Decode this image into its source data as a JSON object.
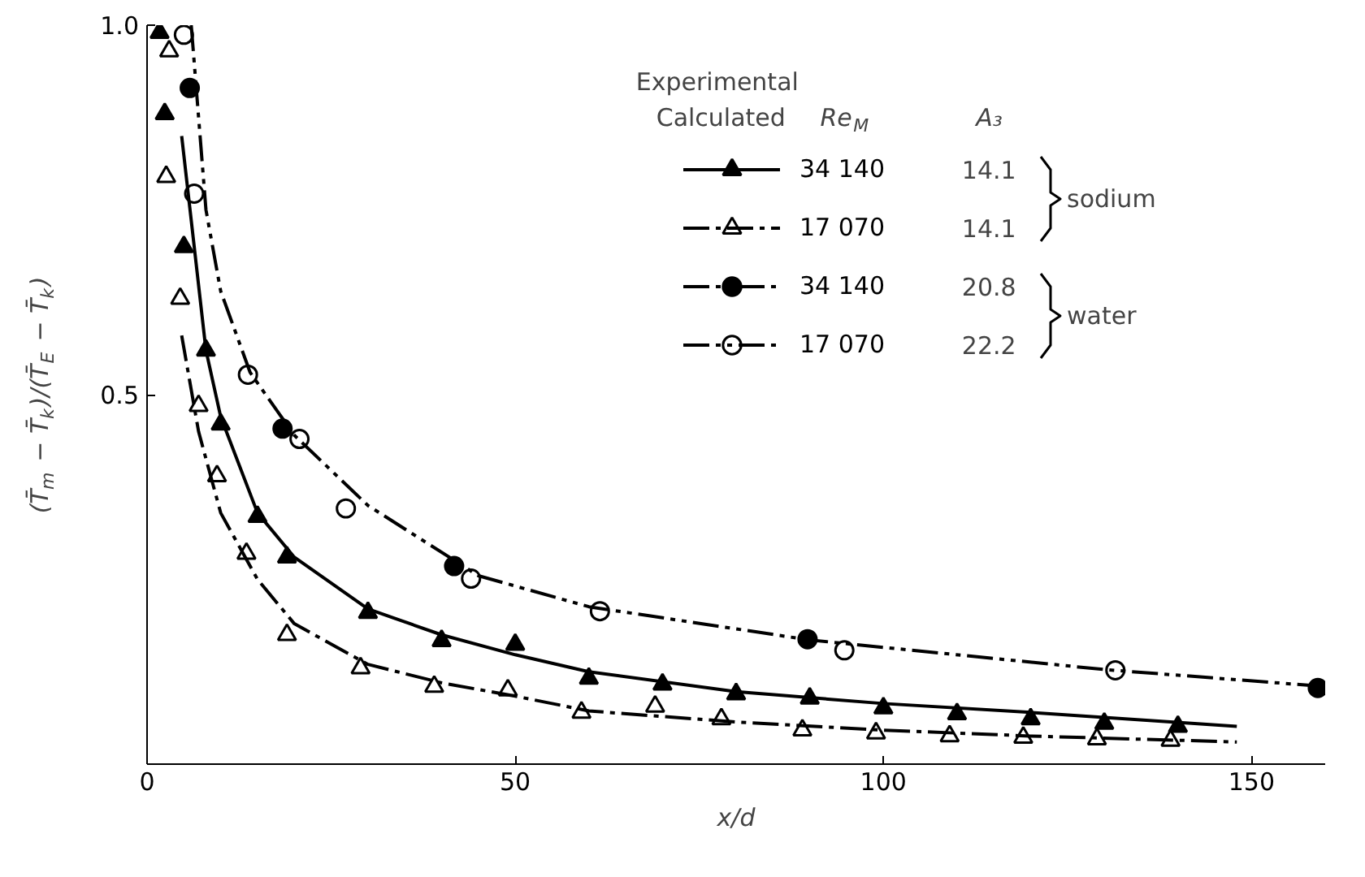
{
  "chart_data": {
    "type": "scatter",
    "xlabel": "x/d",
    "ylabel": "(T̄$_{m}$ − T̄$_{k}$)/(T̄$_{E}$ − T̄$_{k}$)",
    "xlim": [
      0,
      160
    ],
    "ylim": [
      0,
      1.0
    ],
    "xticks": [
      0,
      50,
      100,
      150
    ],
    "yticks": [
      {
        "value": 0.5,
        "label": "0.5"
      },
      {
        "value": 1.0,
        "label": "1.0"
      }
    ],
    "grid": false,
    "legend": "top right",
    "annotations": [
      "Re$_{M}$",
      "Experimental",
      "Calculated",
      "A₃",
      "14.1",
      "14.1",
      "20.8",
      "22.2",
      "sodium",
      "water"
    ],
    "series": [
      {
        "name": "34 140",
        "marker": "triangle",
        "color": "#000000",
        "x": [
          1.7,
          2.4,
          5,
          8,
          10,
          15,
          19,
          30,
          40,
          50,
          60,
          70,
          80,
          90,
          100,
          110,
          120,
          130,
          140
        ],
        "values": [
          0.99,
          0.88,
          0.7,
          0.56,
          0.46,
          0.335,
          0.28,
          0.205,
          0.167,
          0.162,
          0.116,
          0.108,
          0.095,
          0.089,
          0.076,
          0.068,
          0.061,
          0.055,
          0.051
        ]
      },
      {
        "name": "17 070",
        "marker": "triangle",
        "color": "#ffffff",
        "x": [
          3,
          2.6,
          4.5,
          7,
          9.5,
          13.5,
          19,
          29,
          39,
          49,
          59,
          69,
          78,
          89,
          99,
          109,
          119,
          129,
          139
        ],
        "values": [
          0.965,
          0.795,
          0.63,
          0.485,
          0.39,
          0.285,
          0.175,
          0.13,
          0.105,
          0.1,
          0.07,
          0.078,
          0.061,
          0.046,
          0.042,
          0.038,
          0.036,
          0.034,
          0.032
        ]
      },
      {
        "name": "34 140",
        "marker": "circle",
        "color": "#000000",
        "x": [
          5.8,
          18.4,
          41.7,
          89.7,
          159
        ],
        "values": [
          0.915,
          0.454,
          0.268,
          0.169,
          0.103
        ]
      },
      {
        "name": "17 070",
        "marker": "circle",
        "color": "#ffffff",
        "x": [
          5,
          6.4,
          13.7,
          20.7,
          27,
          44,
          61.5,
          94.7,
          131.5
        ],
        "values": [
          0.987,
          0.772,
          0.527,
          0.44,
          0.346,
          0.251,
          0.207,
          0.154,
          0.127
        ]
      },
      {
        "type": "line",
        "line_style": "solid",
        "color": "#000000",
        "x": [
          4.7,
          8,
          10,
          15,
          20,
          30,
          40,
          50,
          60,
          80,
          100,
          120,
          148
        ],
        "values": [
          0.85,
          0.56,
          0.47,
          0.34,
          0.28,
          0.21,
          0.175,
          0.148,
          0.125,
          0.098,
          0.082,
          0.07,
          0.051
        ]
      },
      {
        "type": "line",
        "line_style": "dashdot",
        "color": "#000000",
        "x": [
          4.7,
          7,
          10,
          15,
          20,
          30,
          40,
          50,
          60,
          80,
          100,
          120,
          148
        ],
        "values": [
          0.58,
          0.45,
          0.34,
          0.25,
          0.19,
          0.135,
          0.11,
          0.092,
          0.072,
          0.057,
          0.046,
          0.038,
          0.03
        ]
      },
      {
        "type": "line",
        "line_style": "dashdotdot",
        "color": "#000000",
        "x": [
          6,
          8,
          10,
          14,
          20,
          30,
          45,
          60,
          90,
          130,
          160
        ],
        "values": [
          1.0,
          0.75,
          0.64,
          0.53,
          0.445,
          0.35,
          0.255,
          0.213,
          0.168,
          0.128,
          0.105
        ]
      }
    ]
  }
}
